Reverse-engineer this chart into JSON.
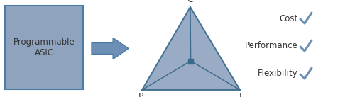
{
  "box_color": "#8FA3BF",
  "box_edge_color": "#4A7BA7",
  "arrow_color": "#6B8FB5",
  "triangle_fill": "#8FA3BF",
  "triangle_edge": "#3A6A8C",
  "center_box_color": "#3A6A8C",
  "check_color": "#6B8FB5",
  "text_color": "#333333",
  "box_label1": "Programmable",
  "box_label2": "ASIC",
  "vertex_C": "C",
  "vertex_P": "P",
  "vertex_F": "F",
  "labels": [
    "Cost",
    "Performance",
    "Flexibility"
  ],
  "bg_color": "#FFFFFF",
  "fig_w": 5.0,
  "fig_h": 1.37,
  "dpi": 100
}
